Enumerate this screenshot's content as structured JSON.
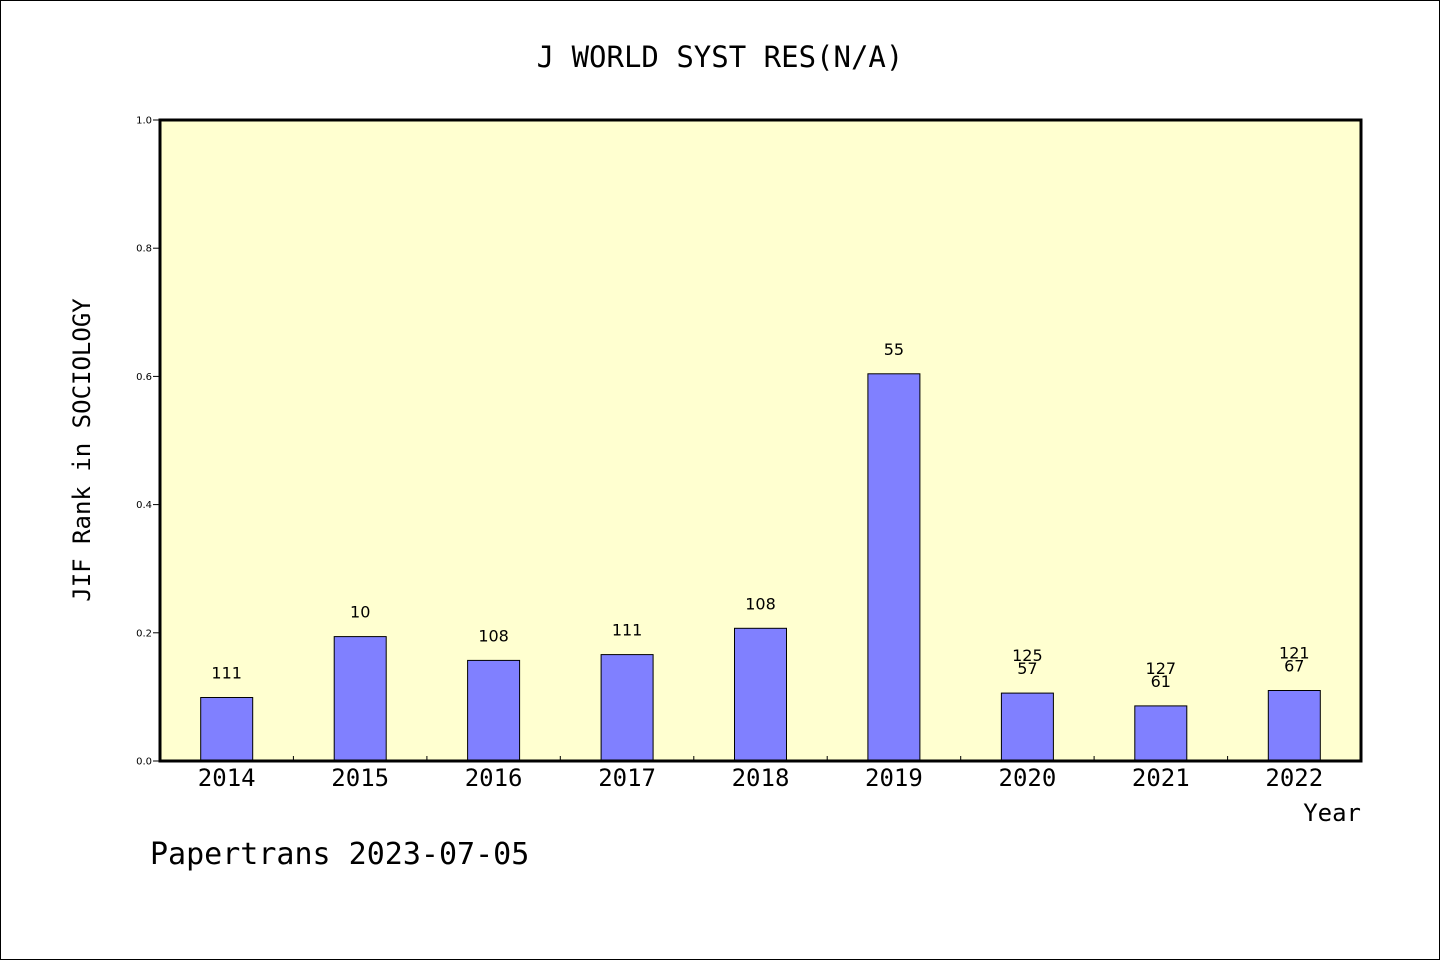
{
  "chart_data": {
    "type": "bar",
    "title": "J WORLD SYST RES(N/A)",
    "xlabel": "Year",
    "ylabel": "JIF Rank in SOCIOLOGY",
    "categories": [
      "2014",
      "2015",
      "2016",
      "2017",
      "2018",
      "2019",
      "2020",
      "2021",
      "2022"
    ],
    "values": [
      0.099,
      0.194,
      0.157,
      0.166,
      0.207,
      0.604,
      0.106,
      0.086,
      0.11
    ],
    "bar_labels": [
      [
        "111"
      ],
      [
        "10"
      ],
      [
        "108"
      ],
      [
        "111"
      ],
      [
        "108"
      ],
      [
        "55"
      ],
      [
        "125",
        "57"
      ],
      [
        "127",
        "61"
      ],
      [
        "121",
        "67"
      ]
    ],
    "ylim": [
      0,
      1.0
    ],
    "yticks": [
      "0.0",
      "0.2",
      "0.4",
      "0.6",
      "0.8",
      "1.0"
    ],
    "grid": false,
    "plot_background": "#ffffd0",
    "bar_color": "#8080ff"
  },
  "footer": "Papertrans 2023-07-05"
}
